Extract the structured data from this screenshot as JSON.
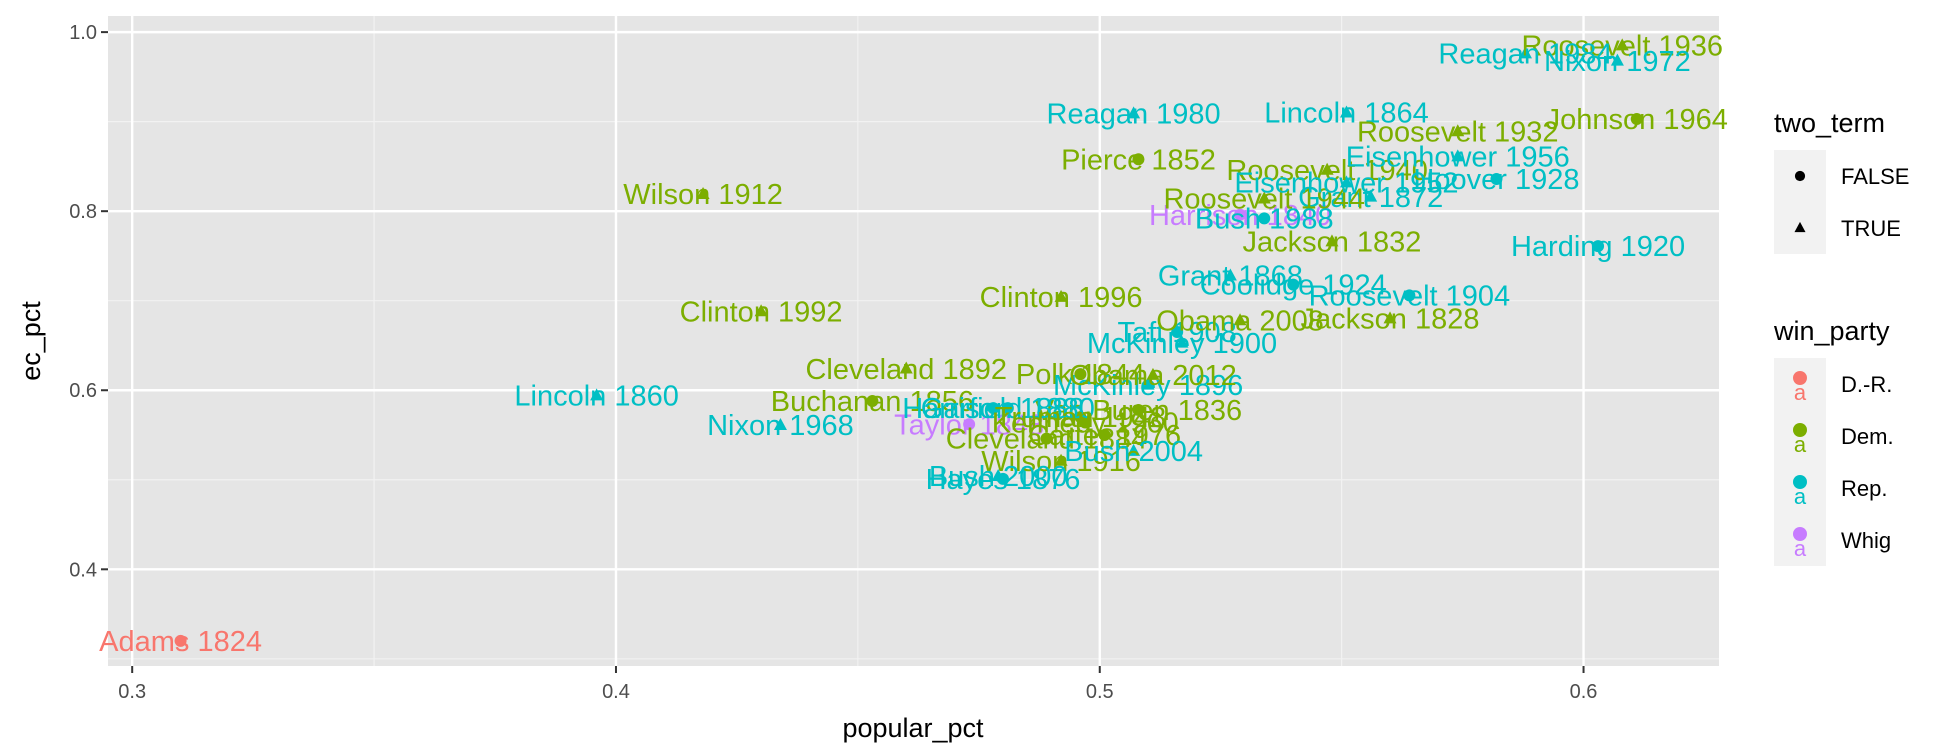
{
  "chart_data": {
    "type": "scatter",
    "title": "",
    "xlabel": "popular_pct",
    "ylabel": "ec_pct",
    "xlim": [
      0.295,
      0.628
    ],
    "ylim": [
      0.292,
      1.018
    ],
    "x_ticks": [
      {
        "value": 0.3,
        "label": "0.3"
      },
      {
        "value": 0.4,
        "label": "0.4"
      },
      {
        "value": 0.5,
        "label": "0.5"
      },
      {
        "value": 0.6,
        "label": "0.6"
      }
    ],
    "y_ticks": [
      {
        "value": 0.4,
        "label": "0.4"
      },
      {
        "value": 0.6,
        "label": "0.6"
      },
      {
        "value": 0.8,
        "label": "0.8"
      },
      {
        "value": 1.0,
        "label": "1.0"
      }
    ],
    "grid": true,
    "legend_placement": "right",
    "panel_background": "#e5e5e5",
    "party_colors": {
      "D.-R.": "#f8766d",
      "Dem.": "#7cae00",
      "Rep.": "#00bfc4",
      "Whig": "#c77cff"
    },
    "legends": [
      {
        "title": "two_term",
        "kind": "shape",
        "items": [
          {
            "label": "FALSE",
            "shape": "circle"
          },
          {
            "label": "TRUE",
            "shape": "triangle"
          }
        ]
      },
      {
        "title": "win_party",
        "kind": "color",
        "items": [
          {
            "label": "D.-R.",
            "color": "#f8766d"
          },
          {
            "label": "Dem.",
            "color": "#7cae00"
          },
          {
            "label": "Rep.",
            "color": "#00bfc4"
          },
          {
            "label": "Whig",
            "color": "#c77cff"
          }
        ]
      }
    ],
    "points": [
      {
        "label": "Adams 1824",
        "x": 0.31,
        "y": 0.32,
        "party": "D.-R.",
        "two_term": false
      },
      {
        "label": "Jackson 1828",
        "x": 0.56,
        "y": 0.68,
        "party": "Dem.",
        "two_term": true
      },
      {
        "label": "Jackson 1832",
        "x": 0.548,
        "y": 0.766,
        "party": "Dem.",
        "two_term": true
      },
      {
        "label": "Van Buren 1836",
        "x": 0.508,
        "y": 0.578,
        "party": "Dem.",
        "two_term": false
      },
      {
        "label": "Harrison 1840",
        "x": 0.529,
        "y": 0.796,
        "party": "Whig",
        "two_term": false
      },
      {
        "label": "Polk 1844",
        "x": 0.496,
        "y": 0.618,
        "party": "Dem.",
        "two_term": false
      },
      {
        "label": "Taylor 1848",
        "x": 0.473,
        "y": 0.562,
        "party": "Whig",
        "two_term": false
      },
      {
        "label": "Pierce 1852",
        "x": 0.508,
        "y": 0.858,
        "party": "Dem.",
        "two_term": false
      },
      {
        "label": "Buchanan 1856",
        "x": 0.453,
        "y": 0.588,
        "party": "Dem.",
        "two_term": false
      },
      {
        "label": "Lincoln 1860",
        "x": 0.396,
        "y": 0.594,
        "party": "Rep.",
        "two_term": true
      },
      {
        "label": "Lincoln 1864",
        "x": 0.551,
        "y": 0.91,
        "party": "Rep.",
        "two_term": true
      },
      {
        "label": "Grant 1868",
        "x": 0.527,
        "y": 0.728,
        "party": "Rep.",
        "two_term": true
      },
      {
        "label": "Grant 1872",
        "x": 0.556,
        "y": 0.816,
        "party": "Rep.",
        "two_term": true
      },
      {
        "label": "Hayes 1876",
        "x": 0.48,
        "y": 0.501,
        "party": "Rep.",
        "two_term": false
      },
      {
        "label": "Garfield 1880",
        "x": 0.481,
        "y": 0.58,
        "party": "Rep.",
        "two_term": false
      },
      {
        "label": "Cleveland 1884",
        "x": 0.489,
        "y": 0.546,
        "party": "Dem.",
        "two_term": false
      },
      {
        "label": "Harrison 1888",
        "x": 0.478,
        "y": 0.58,
        "party": "Rep.",
        "two_term": false
      },
      {
        "label": "Cleveland 1892",
        "x": 0.46,
        "y": 0.624,
        "party": "Dem.",
        "two_term": true
      },
      {
        "label": "McKinley 1896",
        "x": 0.51,
        "y": 0.606,
        "party": "Rep.",
        "two_term": true
      },
      {
        "label": "McKinley 1900",
        "x": 0.517,
        "y": 0.653,
        "party": "Rep.",
        "two_term": true
      },
      {
        "label": "Roosevelt 1904",
        "x": 0.564,
        "y": 0.706,
        "party": "Rep.",
        "two_term": false
      },
      {
        "label": "Taft 1908",
        "x": 0.516,
        "y": 0.665,
        "party": "Rep.",
        "two_term": false
      },
      {
        "label": "Wilson 1912",
        "x": 0.418,
        "y": 0.819,
        "party": "Dem.",
        "two_term": true
      },
      {
        "label": "Wilson 1916",
        "x": 0.492,
        "y": 0.521,
        "party": "Dem.",
        "two_term": true
      },
      {
        "label": "Harding 1920",
        "x": 0.603,
        "y": 0.761,
        "party": "Rep.",
        "two_term": false
      },
      {
        "label": "Coolidge 1924",
        "x": 0.54,
        "y": 0.718,
        "party": "Rep.",
        "two_term": false
      },
      {
        "label": "Hoover 1928",
        "x": 0.582,
        "y": 0.836,
        "party": "Rep.",
        "two_term": false
      },
      {
        "label": "Roosevelt 1932",
        "x": 0.574,
        "y": 0.889,
        "party": "Dem.",
        "two_term": true
      },
      {
        "label": "Roosevelt 1936",
        "x": 0.608,
        "y": 0.985,
        "party": "Dem.",
        "two_term": true
      },
      {
        "label": "Roosevelt 1940",
        "x": 0.547,
        "y": 0.846,
        "party": "Dem.",
        "two_term": true
      },
      {
        "label": "Roosevelt 1944",
        "x": 0.534,
        "y": 0.814,
        "party": "Dem.",
        "two_term": true
      },
      {
        "label": "Truman 1948",
        "x": 0.496,
        "y": 0.57,
        "party": "Dem.",
        "two_term": false
      },
      {
        "label": "Eisenhower 1952",
        "x": 0.551,
        "y": 0.832,
        "party": "Rep.",
        "two_term": true
      },
      {
        "label": "Eisenhower 1956",
        "x": 0.574,
        "y": 0.861,
        "party": "Rep.",
        "two_term": true
      },
      {
        "label": "Kennedy 1960",
        "x": 0.497,
        "y": 0.564,
        "party": "Dem.",
        "two_term": false
      },
      {
        "label": "Johnson 1964",
        "x": 0.611,
        "y": 0.903,
        "party": "Dem.",
        "two_term": false
      },
      {
        "label": "Nixon 1968",
        "x": 0.434,
        "y": 0.561,
        "party": "Rep.",
        "two_term": true
      },
      {
        "label": "Nixon 1972",
        "x": 0.607,
        "y": 0.968,
        "party": "Rep.",
        "two_term": true
      },
      {
        "label": "Carter 1976",
        "x": 0.501,
        "y": 0.55,
        "party": "Dem.",
        "two_term": false
      },
      {
        "label": "Reagan 1980",
        "x": 0.507,
        "y": 0.909,
        "party": "Rep.",
        "two_term": true
      },
      {
        "label": "Reagan 1984",
        "x": 0.588,
        "y": 0.976,
        "party": "Rep.",
        "two_term": true
      },
      {
        "label": "Bush 1988",
        "x": 0.534,
        "y": 0.792,
        "party": "Rep.",
        "two_term": false
      },
      {
        "label": "Clinton 1992",
        "x": 0.43,
        "y": 0.688,
        "party": "Dem.",
        "two_term": true
      },
      {
        "label": "Clinton 1996",
        "x": 0.492,
        "y": 0.704,
        "party": "Dem.",
        "two_term": true
      },
      {
        "label": "Bush 2000",
        "x": 0.479,
        "y": 0.504,
        "party": "Rep.",
        "two_term": true
      },
      {
        "label": "Bush 2004",
        "x": 0.507,
        "y": 0.532,
        "party": "Rep.",
        "two_term": true
      },
      {
        "label": "Obama 2008",
        "x": 0.529,
        "y": 0.678,
        "party": "Dem.",
        "two_term": true
      },
      {
        "label": "Obama 2012",
        "x": 0.511,
        "y": 0.617,
        "party": "Dem.",
        "two_term": true
      }
    ]
  }
}
